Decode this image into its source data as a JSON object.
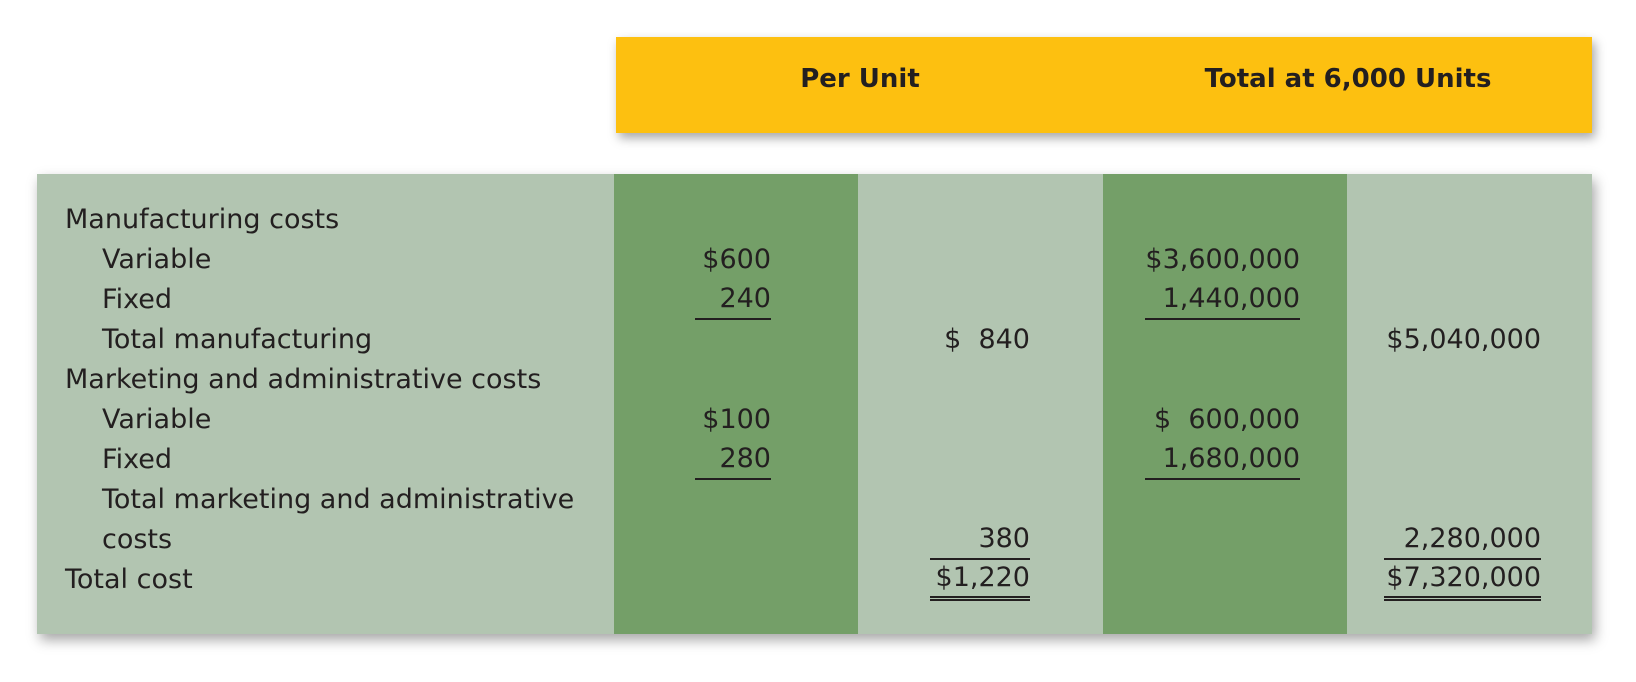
{
  "header": {
    "per_unit": "Per Unit",
    "total": "Total at 6,000 Units"
  },
  "rows": {
    "manufacturing": {
      "label": "Manufacturing costs",
      "variable": {
        "label": "Variable",
        "per_unit": "$600",
        "total": "$3,600,000"
      },
      "fixed": {
        "label": "Fixed",
        "per_unit": "240",
        "total": "1,440,000"
      },
      "subtotal": {
        "label": "Total manufacturing",
        "per_unit": "$  840",
        "total": "$5,040,000"
      }
    },
    "marketing": {
      "label": "Marketing and administrative costs",
      "variable": {
        "label": "Variable",
        "per_unit": "$100",
        "total": "$  600,000"
      },
      "fixed": {
        "label": "Fixed",
        "per_unit": "280",
        "total": "1,680,000"
      },
      "subtotal": {
        "label_line1": "Total marketing and administrative",
        "label_line2": "costs",
        "per_unit": "380",
        "total": "2,280,000"
      }
    },
    "total_cost": {
      "label": "Total cost",
      "per_unit": "$1,220",
      "total": "$7,320,000"
    }
  },
  "colors": {
    "header_band": "#fdc010",
    "panel": "#b2c5b1",
    "stripe": "#749f68"
  }
}
